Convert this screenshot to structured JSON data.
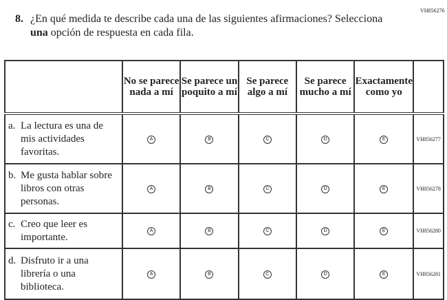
{
  "item_code": "VH856276",
  "question": {
    "number": "8.",
    "text_before": "¿En qué medida te describe cada una de las siguientes afirmaciones? Selecciona ",
    "bold": "una",
    "text_after": " opción de respuesta en cada fila."
  },
  "columns": [
    "No se parece nada a mí",
    "Se parece un poquito a mí",
    "Se parece algo a mí",
    "Se parece mucho a mí",
    "Exactamente como yo"
  ],
  "options": [
    "A",
    "B",
    "C",
    "D",
    "E"
  ],
  "rows": [
    {
      "letter": "a.",
      "text": "La lectura es una de mis actividades favoritas.",
      "code": "VH856277"
    },
    {
      "letter": "b.",
      "text": "Me gusta hablar sobre libros con otras personas.",
      "code": "VH856278"
    },
    {
      "letter": "c.",
      "text": "Creo que leer es importante.",
      "code": "VH856280"
    },
    {
      "letter": "d.",
      "text": "Disfruto ir a una librería o una biblioteca.",
      "code": "VH856281"
    }
  ]
}
